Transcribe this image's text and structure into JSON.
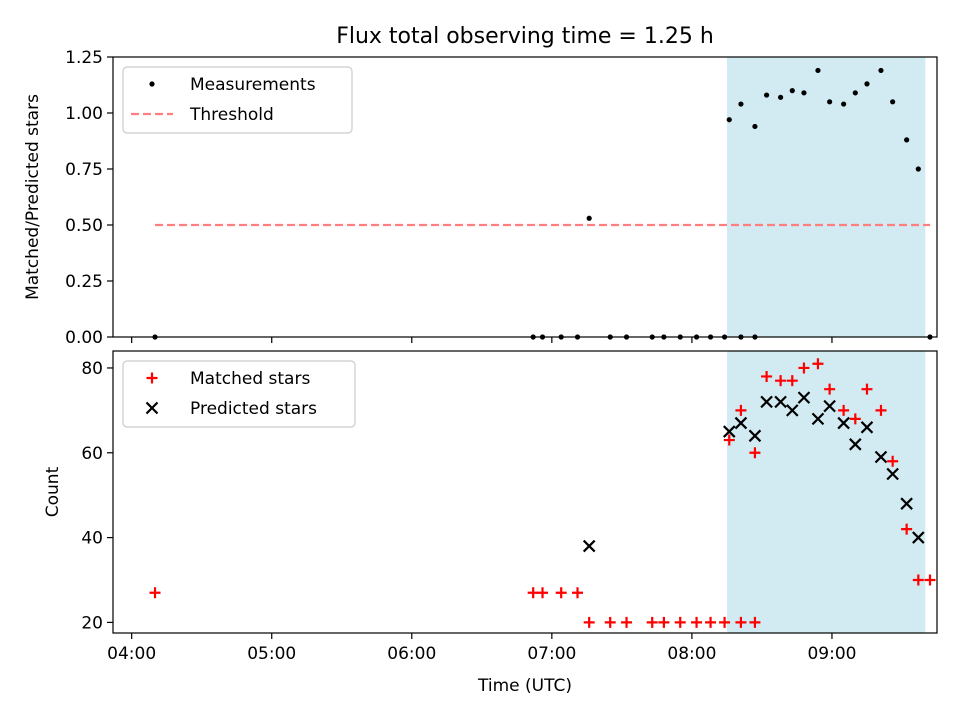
{
  "figure": {
    "title": "Flux total observing time = 1.25 h",
    "xlabel": "Time (UTC)",
    "x_ticks": [
      {
        "t": "04:00",
        "label": "04:00"
      },
      {
        "t": "05:00",
        "label": "05:00"
      },
      {
        "t": "06:00",
        "label": "06:00"
      },
      {
        "t": "07:00",
        "label": "07:00"
      },
      {
        "t": "08:00",
        "label": "08:00"
      },
      {
        "t": "09:00",
        "label": "09:00"
      }
    ],
    "xlim": [
      "03:52",
      "09:45"
    ],
    "observing_window": [
      "08:15",
      "09:40"
    ],
    "window_color": "#add8e6"
  },
  "chart_data": [
    {
      "type": "scatter",
      "panel": "top",
      "ylabel": "Matched/Predicted stars",
      "ylim": [
        0,
        1.25
      ],
      "y_ticks": [
        0.0,
        0.25,
        0.5,
        0.75,
        1.0,
        1.25
      ],
      "y_tick_labels": [
        "0.00",
        "0.25",
        "0.50",
        "0.75",
        "1.00",
        "1.25"
      ],
      "legend_position": "upper-left",
      "series": [
        {
          "name": "Measurements",
          "marker": "dot",
          "color": "#000000",
          "points": [
            {
              "t": "04:10",
              "y": 0.0
            },
            {
              "t": "06:52",
              "y": 0.0
            },
            {
              "t": "06:56",
              "y": 0.0
            },
            {
              "t": "07:04",
              "y": 0.0
            },
            {
              "t": "07:11",
              "y": 0.0
            },
            {
              "t": "07:16",
              "y": 0.53
            },
            {
              "t": "07:25",
              "y": 0.0
            },
            {
              "t": "07:32",
              "y": 0.0
            },
            {
              "t": "07:43",
              "y": 0.0
            },
            {
              "t": "07:48",
              "y": 0.0
            },
            {
              "t": "07:55",
              "y": 0.0
            },
            {
              "t": "08:02",
              "y": 0.0
            },
            {
              "t": "08:08",
              "y": 0.0
            },
            {
              "t": "08:14",
              "y": 0.0
            },
            {
              "t": "08:21",
              "y": 0.0
            },
            {
              "t": "08:27",
              "y": 0.0
            },
            {
              "t": "08:16",
              "y": 0.97
            },
            {
              "t": "08:21",
              "y": 1.04
            },
            {
              "t": "08:27",
              "y": 0.94
            },
            {
              "t": "08:32",
              "y": 1.08
            },
            {
              "t": "08:38",
              "y": 1.07
            },
            {
              "t": "08:43",
              "y": 1.1
            },
            {
              "t": "08:48",
              "y": 1.09
            },
            {
              "t": "08:54",
              "y": 1.19
            },
            {
              "t": "08:59",
              "y": 1.05
            },
            {
              "t": "09:05",
              "y": 1.04
            },
            {
              "t": "09:10",
              "y": 1.09
            },
            {
              "t": "09:15",
              "y": 1.13
            },
            {
              "t": "09:21",
              "y": 1.19
            },
            {
              "t": "09:26",
              "y": 1.05
            },
            {
              "t": "09:32",
              "y": 0.88
            },
            {
              "t": "09:37",
              "y": 0.75
            },
            {
              "t": "09:42",
              "y": 0.0
            }
          ]
        },
        {
          "name": "Threshold",
          "marker": "dashed-line",
          "color": "#ff7f7f",
          "x_range": [
            "04:10",
            "09:42"
          ],
          "y": 0.5
        }
      ]
    },
    {
      "type": "scatter",
      "panel": "bottom",
      "ylabel": "Count",
      "ylim": [
        17.5,
        84
      ],
      "y_ticks": [
        20,
        40,
        60,
        80
      ],
      "y_tick_labels": [
        "20",
        "40",
        "60",
        "80"
      ],
      "legend_position": "upper-left",
      "series": [
        {
          "name": "Matched stars",
          "marker": "plus",
          "color": "#ff0000",
          "points": [
            {
              "t": "04:10",
              "y": 27
            },
            {
              "t": "06:52",
              "y": 27
            },
            {
              "t": "06:56",
              "y": 27
            },
            {
              "t": "07:04",
              "y": 27
            },
            {
              "t": "07:11",
              "y": 27
            },
            {
              "t": "07:16",
              "y": 20
            },
            {
              "t": "07:25",
              "y": 20
            },
            {
              "t": "07:32",
              "y": 20
            },
            {
              "t": "07:43",
              "y": 20
            },
            {
              "t": "07:48",
              "y": 20
            },
            {
              "t": "07:55",
              "y": 20
            },
            {
              "t": "08:02",
              "y": 20
            },
            {
              "t": "08:08",
              "y": 20
            },
            {
              "t": "08:14",
              "y": 20
            },
            {
              "t": "08:21",
              "y": 20
            },
            {
              "t": "08:27",
              "y": 20
            },
            {
              "t": "08:16",
              "y": 63
            },
            {
              "t": "08:21",
              "y": 70
            },
            {
              "t": "08:27",
              "y": 60
            },
            {
              "t": "08:32",
              "y": 78
            },
            {
              "t": "08:38",
              "y": 77
            },
            {
              "t": "08:43",
              "y": 77
            },
            {
              "t": "08:48",
              "y": 80
            },
            {
              "t": "08:54",
              "y": 81
            },
            {
              "t": "08:59",
              "y": 75
            },
            {
              "t": "09:05",
              "y": 70
            },
            {
              "t": "09:10",
              "y": 68
            },
            {
              "t": "09:15",
              "y": 75
            },
            {
              "t": "09:21",
              "y": 70
            },
            {
              "t": "09:26",
              "y": 58
            },
            {
              "t": "09:32",
              "y": 42
            },
            {
              "t": "09:37",
              "y": 30
            },
            {
              "t": "09:42",
              "y": 30
            }
          ]
        },
        {
          "name": "Predicted stars",
          "marker": "x",
          "color": "#000000",
          "points": [
            {
              "t": "07:16",
              "y": 38
            },
            {
              "t": "08:16",
              "y": 65
            },
            {
              "t": "08:21",
              "y": 67
            },
            {
              "t": "08:27",
              "y": 64
            },
            {
              "t": "08:32",
              "y": 72
            },
            {
              "t": "08:38",
              "y": 72
            },
            {
              "t": "08:43",
              "y": 70
            },
            {
              "t": "08:48",
              "y": 73
            },
            {
              "t": "08:54",
              "y": 68
            },
            {
              "t": "08:59",
              "y": 71
            },
            {
              "t": "09:05",
              "y": 67
            },
            {
              "t": "09:10",
              "y": 62
            },
            {
              "t": "09:15",
              "y": 66
            },
            {
              "t": "09:21",
              "y": 59
            },
            {
              "t": "09:26",
              "y": 55
            },
            {
              "t": "09:32",
              "y": 48
            },
            {
              "t": "09:37",
              "y": 40
            }
          ]
        }
      ]
    }
  ]
}
